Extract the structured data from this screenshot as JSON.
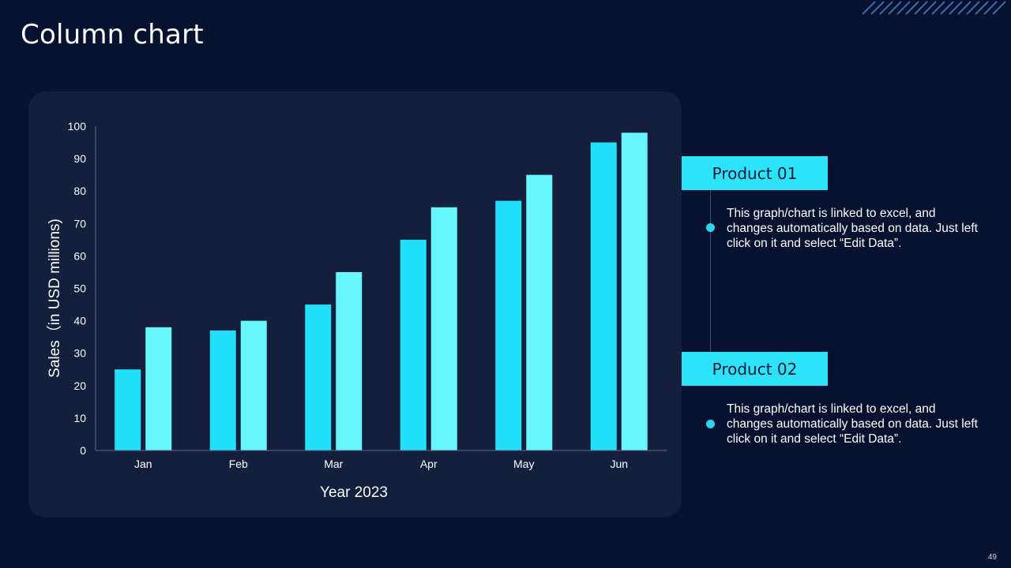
{
  "slide": {
    "title": "Column chart",
    "page_number": "49"
  },
  "colors": {
    "background": "#061230",
    "card": "#141f3d",
    "series1": "#22e0fa",
    "series2": "#66f6fc",
    "product_box": "#2ce3f8"
  },
  "chart_data": {
    "type": "bar",
    "title": "",
    "categories": [
      "Jan",
      "Feb",
      "Mar",
      "Apr",
      "May",
      "Jun"
    ],
    "series": [
      {
        "name": "Product 01",
        "values": [
          25,
          37,
          45,
          65,
          77,
          95
        ]
      },
      {
        "name": "Product 02",
        "values": [
          38,
          40,
          55,
          75,
          85,
          98
        ]
      }
    ],
    "xlabel": "Year 2023",
    "ylabel": "Sales（in USD millions)",
    "ylim": [
      0,
      100
    ],
    "yticks": [
      0,
      10,
      20,
      30,
      40,
      50,
      60,
      70,
      80,
      90,
      100
    ],
    "grid": false
  },
  "legend_panel": [
    {
      "label": "Product 01",
      "text": "This graph/chart is linked to excel, and changes automatically based on data. Just left click on it and select “Edit Data”."
    },
    {
      "label": "Product 02",
      "text": "This graph/chart is linked to excel, and changes automatically based on data. Just left click on it and select “Edit Data”."
    }
  ]
}
